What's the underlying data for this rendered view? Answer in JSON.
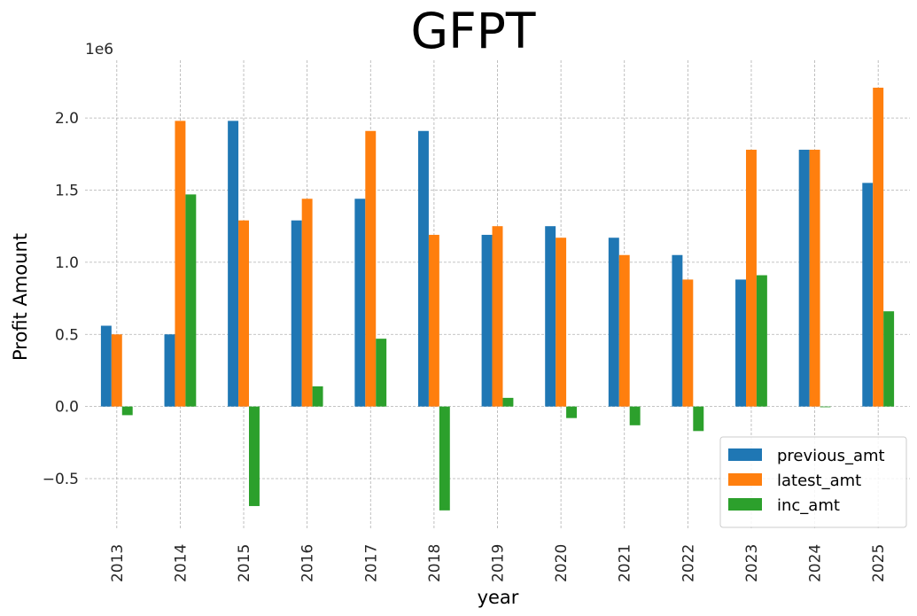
{
  "chart_data": {
    "type": "bar",
    "title": "GFPT",
    "xlabel": "year",
    "ylabel": "Profit Amount",
    "y_offset_label": "1e6",
    "ylim": [
      -0.85,
      2.4
    ],
    "yticks": [
      "−0.5",
      "0.0",
      "0.5",
      "1.0",
      "1.5",
      "2.0"
    ],
    "ytick_values": [
      -0.5,
      0.0,
      0.5,
      1.0,
      1.5,
      2.0
    ],
    "grid": true,
    "legend_position": "bottom-right",
    "categories": [
      "2013",
      "2014",
      "2015",
      "2016",
      "2017",
      "2018",
      "2019",
      "2020",
      "2021",
      "2022",
      "2023",
      "2024",
      "2025"
    ],
    "series": [
      {
        "name": "previous_amt",
        "color": "#1f77b4",
        "values": [
          0.56,
          0.5,
          1.98,
          1.29,
          1.44,
          1.91,
          1.19,
          1.25,
          1.17,
          1.05,
          0.88,
          1.78,
          1.55
        ]
      },
      {
        "name": "latest_amt",
        "color": "#ff7f0e",
        "values": [
          0.5,
          1.98,
          1.29,
          1.44,
          1.91,
          1.19,
          1.25,
          1.17,
          1.05,
          0.88,
          1.78,
          1.78,
          2.21
        ]
      },
      {
        "name": "inc_amt",
        "color": "#2ca02c",
        "values": [
          -0.06,
          1.47,
          -0.69,
          0.14,
          0.47,
          -0.72,
          0.06,
          -0.08,
          -0.13,
          -0.17,
          0.91,
          0.0,
          0.66
        ]
      }
    ]
  }
}
